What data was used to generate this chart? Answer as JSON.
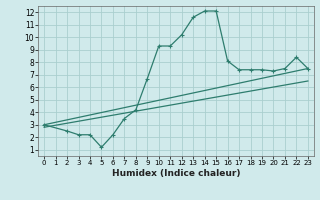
{
  "xlabel": "Humidex (Indice chaleur)",
  "x_ticks": [
    0,
    1,
    2,
    3,
    4,
    5,
    6,
    7,
    8,
    9,
    10,
    11,
    12,
    13,
    14,
    15,
    16,
    17,
    18,
    19,
    20,
    21,
    22,
    23
  ],
  "y_ticks": [
    1,
    2,
    3,
    4,
    5,
    6,
    7,
    8,
    9,
    10,
    11,
    12
  ],
  "xlim": [
    -0.5,
    23.5
  ],
  "ylim": [
    0.5,
    12.5
  ],
  "line1_x": [
    0,
    2,
    3,
    4,
    5,
    6,
    7,
    8,
    9,
    10,
    11,
    12,
    13,
    14,
    15,
    16,
    17,
    18,
    19,
    20,
    21,
    22,
    23
  ],
  "line1_y": [
    3.0,
    2.5,
    2.2,
    2.2,
    1.2,
    2.2,
    3.5,
    4.2,
    6.7,
    9.3,
    9.3,
    10.2,
    11.6,
    12.1,
    12.1,
    8.1,
    7.4,
    7.4,
    7.4,
    7.3,
    7.5,
    8.4,
    7.5
  ],
  "line2_x": [
    0,
    23
  ],
  "line2_y": [
    3.0,
    7.5
  ],
  "line3_x": [
    0,
    23
  ],
  "line3_y": [
    2.8,
    6.5
  ],
  "line_color": "#2e7d6e",
  "bg_color": "#d0eaeb",
  "grid_color": "#aacfcf"
}
